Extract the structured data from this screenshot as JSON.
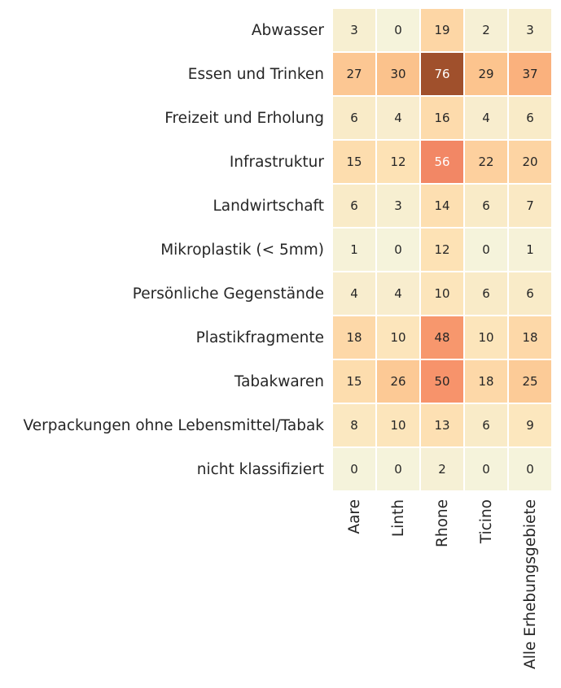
{
  "chart_data": {
    "type": "heatmap",
    "rows": [
      "Abwasser",
      "Essen und Trinken",
      "Freizeit und Erholung",
      "Infrastruktur",
      "Landwirtschaft",
      "Mikroplastik (< 5mm)",
      "Persönliche Gegenstände",
      "Plastikfragmente",
      "Tabakwaren",
      "Verpackungen ohne Lebensmittel/Tabak",
      "nicht klassifiziert"
    ],
    "columns": [
      "Aare",
      "Linth",
      "Rhone",
      "Ticino",
      "Alle Erhebungsgebiete"
    ],
    "values": [
      [
        3,
        0,
        19,
        2,
        3
      ],
      [
        27,
        30,
        76,
        29,
        37
      ],
      [
        6,
        4,
        16,
        4,
        6
      ],
      [
        15,
        12,
        56,
        22,
        20
      ],
      [
        6,
        3,
        14,
        6,
        7
      ],
      [
        1,
        0,
        12,
        0,
        1
      ],
      [
        4,
        4,
        10,
        6,
        6
      ],
      [
        18,
        10,
        48,
        10,
        18
      ],
      [
        15,
        26,
        50,
        18,
        25
      ],
      [
        8,
        10,
        13,
        6,
        9
      ],
      [
        0,
        0,
        2,
        0,
        0
      ]
    ],
    "colorbar": false,
    "colormap_stops": [
      "#f5f3db",
      "#fde4b8",
      "#fdd19f",
      "#fbbd86",
      "#f9a070",
      "#f58a68",
      "#e07a52",
      "#a0502c"
    ],
    "value_range": [
      0,
      76
    ],
    "annotation_dark_text": "#262626",
    "annotation_light_text": "#ffffff",
    "cell_border_color": "#ffffff"
  }
}
